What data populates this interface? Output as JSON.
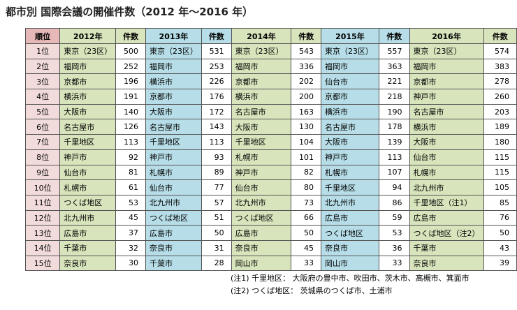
{
  "title": "都市別  国際会議の開催件数（2012 年～2016 年）",
  "table": {
    "header": [
      "順位",
      "2012年",
      "件数",
      "2013年",
      "件数",
      "2014年",
      "件数",
      "2015年",
      "件数",
      "2016年",
      "件数"
    ],
    "rows": [
      [
        "1位",
        "東京（23区）",
        500,
        "東京（23区）",
        531,
        "東京（23区）",
        543,
        "東京（23区）",
        557,
        "東京（23区）",
        574
      ],
      [
        "2位",
        "福岡市",
        252,
        "福岡市",
        253,
        "福岡市",
        336,
        "福岡市",
        363,
        "福岡市",
        383
      ],
      [
        "3位",
        "京都市",
        196,
        "横浜市",
        226,
        "京都市",
        202,
        "仙台市",
        221,
        "京都市",
        278
      ],
      [
        "4位",
        "横浜市",
        191,
        "京都市",
        176,
        "横浜市",
        200,
        "京都市",
        218,
        "神戸市",
        260
      ],
      [
        "5位",
        "大阪市",
        140,
        "大阪市",
        172,
        "名古屋市",
        163,
        "横浜市",
        190,
        "名古屋市",
        203
      ],
      [
        "6位",
        "名古屋市",
        126,
        "名古屋市",
        143,
        "大阪市",
        130,
        "名古屋市",
        178,
        "横浜市",
        189
      ],
      [
        "7位",
        "千里地区",
        113,
        "千里地区",
        113,
        "千里地区",
        104,
        "大阪市",
        139,
        "大阪市",
        180
      ],
      [
        "8位",
        "神戸市",
        92,
        "神戸市",
        93,
        "札幌市",
        101,
        "神戸市",
        113,
        "仙台市",
        115
      ],
      [
        "9位",
        "仙台市",
        81,
        "札幌市",
        89,
        "神戸市",
        82,
        "札幌市",
        107,
        "札幌市",
        115
      ],
      [
        "10位",
        "札幌市",
        61,
        "仙台市",
        77,
        "仙台市",
        80,
        "千里地区",
        94,
        "北九州市",
        105
      ],
      [
        "11位",
        "つくば地区",
        53,
        "北九州市",
        57,
        "北九州市",
        73,
        "北九州市",
        86,
        "千里地区（注1）",
        85
      ],
      [
        "12位",
        "北九州市",
        45,
        "つくば地区",
        51,
        "つくば地区",
        66,
        "広島市",
        59,
        "広島市",
        76
      ],
      [
        "13位",
        "広島市",
        37,
        "広島市",
        50,
        "広島市",
        50,
        "つくば地区",
        53,
        "つくば地区（注2）",
        50
      ],
      [
        "14位",
        "千葉市",
        32,
        "奈良市",
        31,
        "奈良市",
        45,
        "奈良市",
        36,
        "千葉市",
        43
      ],
      [
        "15位",
        "奈良市",
        30,
        "千葉市",
        28,
        "岡山市",
        33,
        "岡山市",
        33,
        "奈良市",
        39
      ]
    ]
  },
  "notes": [
    "(注1) 千里地区：  大阪府の豊中市、吹田市、茨木市、高槻市、箕面市",
    "(注2) つくば地区：  茨城県のつくば市、土浦市"
  ]
}
